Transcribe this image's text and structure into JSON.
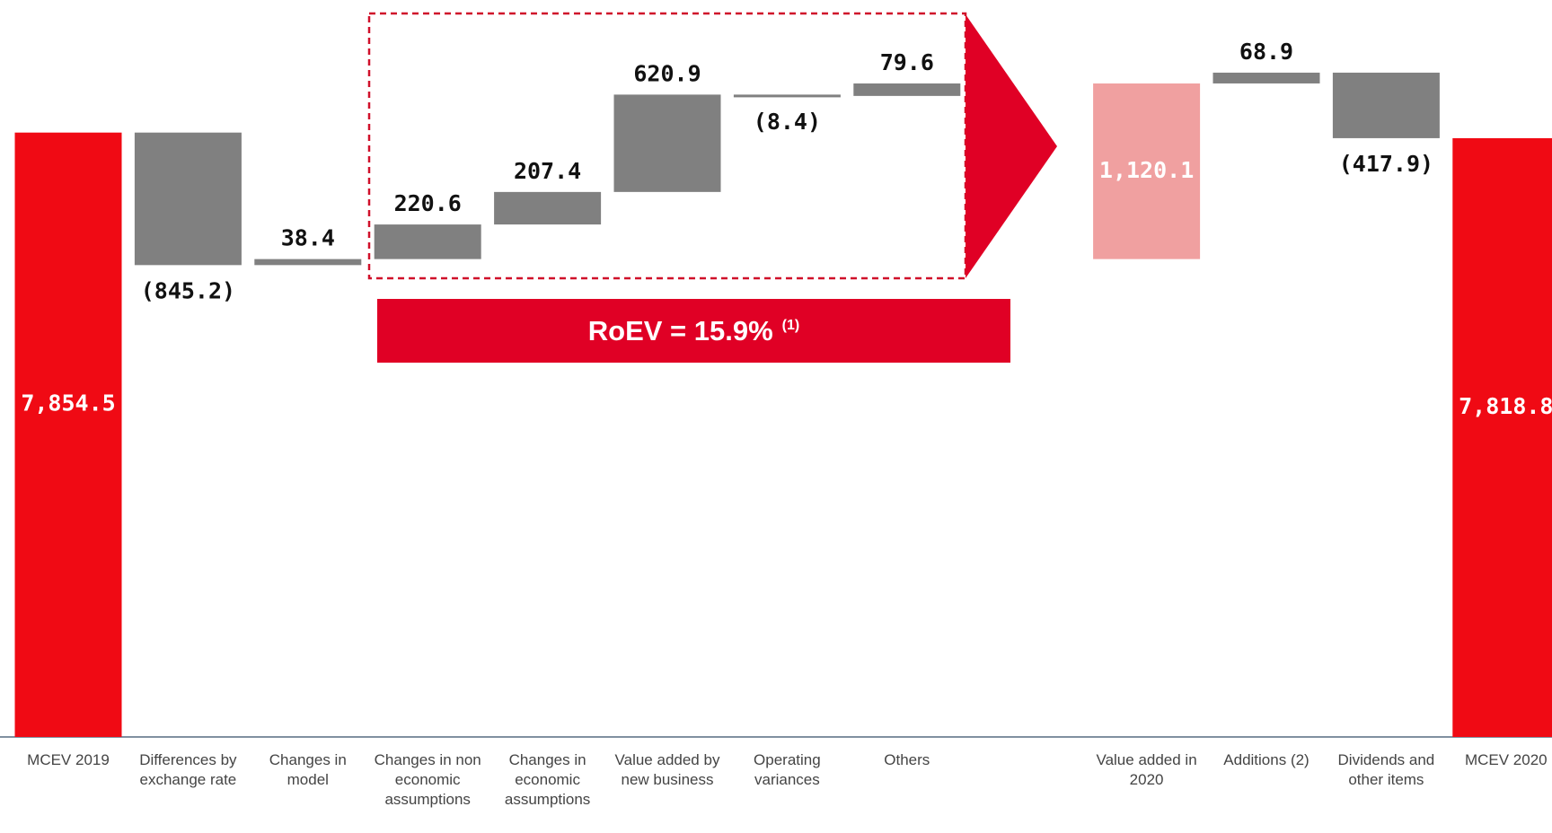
{
  "chart_data": {
    "type": "waterfall",
    "categories": [
      "MCEV 2019",
      "Differences by exchange rate",
      "Changes in model",
      "Changes in non economic assumptions",
      "Changes in economic assumptions",
      "Value added by new business",
      "Operating variances",
      "Others",
      "Value added in 2020",
      "Additions (2)",
      "Dividends and other items",
      "MCEV 2020"
    ],
    "values": [
      7854.5,
      -845.2,
      38.4,
      220.6,
      207.4,
      620.9,
      -8.4,
      79.6,
      1120.1,
      68.9,
      -417.9,
      7818.8
    ],
    "value_labels": [
      "7,854.5",
      "(845.2)",
      "38.4",
      "220.6",
      "207.4",
      "620.9",
      "(8.4)",
      "79.6",
      "1,120.1",
      "68.9",
      "(417.9)",
      "7,818.8"
    ],
    "kinds": [
      "total",
      "delta",
      "delta",
      "delta",
      "delta",
      "delta",
      "delta",
      "delta",
      "subtotal",
      "delta",
      "delta",
      "total"
    ],
    "colors": [
      "#f00a14",
      "#808080",
      "#808080",
      "#808080",
      "#808080",
      "#808080",
      "#808080",
      "#808080",
      "#f0a0a0",
      "#808080",
      "#808080",
      "#f00a14"
    ],
    "ylim": [
      4000,
      8700
    ],
    "annotations": [
      {
        "text": "RoEV = 15.9%",
        "note": "(1)"
      }
    ]
  }
}
